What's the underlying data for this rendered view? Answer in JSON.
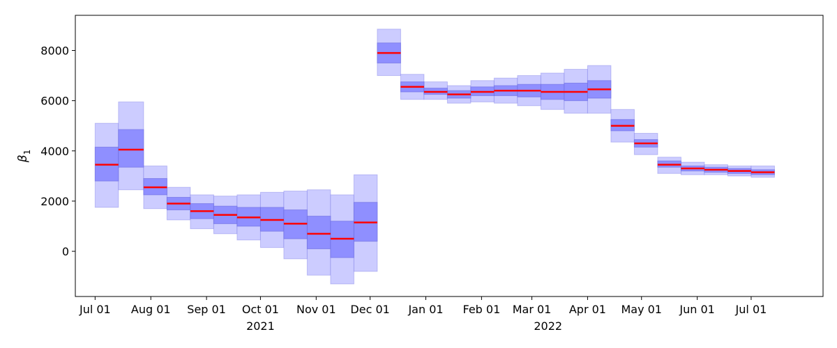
{
  "chart_data": {
    "type": "box",
    "xlabel": "",
    "ylabel": "β",
    "ylabel_sub": "1",
    "ylim": [
      -1800,
      9400
    ],
    "xlim": [
      "2021-06-20",
      "2022-08-10"
    ],
    "yticks": [
      0,
      2000,
      4000,
      6000,
      8000
    ],
    "ytick_labels": [
      "0",
      "2000",
      "4000",
      "6000",
      "8000"
    ],
    "xticks": [
      {
        "date": "2021-07-01",
        "label": "Jul 01"
      },
      {
        "date": "2021-08-01",
        "label": "Aug 01"
      },
      {
        "date": "2021-09-01",
        "label": "Sep 01"
      },
      {
        "date": "2021-10-01",
        "label": "Oct 01"
      },
      {
        "date": "2021-11-01",
        "label": "Nov 01"
      },
      {
        "date": "2021-12-01",
        "label": "Dec 01"
      },
      {
        "date": "2022-01-01",
        "label": "Jan 01"
      },
      {
        "date": "2022-02-01",
        "label": "Feb 01"
      },
      {
        "date": "2022-03-01",
        "label": "Mar 01"
      },
      {
        "date": "2022-04-01",
        "label": "Apr 01"
      },
      {
        "date": "2022-05-01",
        "label": "May 01"
      },
      {
        "date": "2022-06-01",
        "label": "Jun 01"
      },
      {
        "date": "2022-07-01",
        "label": "Jul 01"
      }
    ],
    "year_labels": [
      {
        "date": "2021-10-01",
        "label": "2021"
      },
      {
        "date": "2022-03-10",
        "label": "2022"
      }
    ],
    "colors": {
      "outer_band": "#ccccff",
      "inner_band": "#8f8fff",
      "band_edge": "#6a6ae0",
      "median": "#ff0000"
    },
    "grid": false,
    "segments": [
      {
        "start": "2021-07-01",
        "end": "2021-07-14",
        "lower_outer": 1750,
        "lower_inner": 2800,
        "median": 3450,
        "upper_inner": 4150,
        "upper_outer": 5100
      },
      {
        "start": "2021-07-14",
        "end": "2021-07-28",
        "lower_outer": 2450,
        "lower_inner": 3350,
        "median": 4050,
        "upper_inner": 4850,
        "upper_outer": 5950
      },
      {
        "start": "2021-07-28",
        "end": "2021-08-10",
        "lower_outer": 1700,
        "lower_inner": 2250,
        "median": 2550,
        "upper_inner": 2900,
        "upper_outer": 3400
      },
      {
        "start": "2021-08-10",
        "end": "2021-08-23",
        "lower_outer": 1250,
        "lower_inner": 1650,
        "median": 1900,
        "upper_inner": 2150,
        "upper_outer": 2550
      },
      {
        "start": "2021-08-23",
        "end": "2021-09-05",
        "lower_outer": 900,
        "lower_inner": 1300,
        "median": 1600,
        "upper_inner": 1900,
        "upper_outer": 2250
      },
      {
        "start": "2021-09-05",
        "end": "2021-09-18",
        "lower_outer": 700,
        "lower_inner": 1100,
        "median": 1450,
        "upper_inner": 1800,
        "upper_outer": 2200
      },
      {
        "start": "2021-09-18",
        "end": "2021-10-01",
        "lower_outer": 450,
        "lower_inner": 1000,
        "median": 1350,
        "upper_inner": 1750,
        "upper_outer": 2250
      },
      {
        "start": "2021-10-01",
        "end": "2021-10-14",
        "lower_outer": 150,
        "lower_inner": 800,
        "median": 1250,
        "upper_inner": 1750,
        "upper_outer": 2350
      },
      {
        "start": "2021-10-14",
        "end": "2021-10-27",
        "lower_outer": -300,
        "lower_inner": 500,
        "median": 1100,
        "upper_inner": 1650,
        "upper_outer": 2400
      },
      {
        "start": "2021-10-27",
        "end": "2021-11-09",
        "lower_outer": -950,
        "lower_inner": 100,
        "median": 700,
        "upper_inner": 1400,
        "upper_outer": 2450
      },
      {
        "start": "2021-11-09",
        "end": "2021-11-22",
        "lower_outer": -1300,
        "lower_inner": -250,
        "median": 500,
        "upper_inner": 1200,
        "upper_outer": 2250
      },
      {
        "start": "2021-11-22",
        "end": "2021-12-05",
        "lower_outer": -800,
        "lower_inner": 400,
        "median": 1150,
        "upper_inner": 1950,
        "upper_outer": 3050
      },
      {
        "start": "2021-12-05",
        "end": "2021-12-18",
        "lower_outer": 7000,
        "lower_inner": 7500,
        "median": 7900,
        "upper_inner": 8300,
        "upper_outer": 8850
      },
      {
        "start": "2021-12-18",
        "end": "2021-12-31",
        "lower_outer": 6050,
        "lower_inner": 6350,
        "median": 6550,
        "upper_inner": 6750,
        "upper_outer": 7050
      },
      {
        "start": "2021-12-31",
        "end": "2022-01-13",
        "lower_outer": 6050,
        "lower_inner": 6250,
        "median": 6350,
        "upper_inner": 6500,
        "upper_outer": 6750
      },
      {
        "start": "2022-01-13",
        "end": "2022-01-26",
        "lower_outer": 5900,
        "lower_inner": 6100,
        "median": 6250,
        "upper_inner": 6400,
        "upper_outer": 6600
      },
      {
        "start": "2022-01-26",
        "end": "2022-02-08",
        "lower_outer": 5950,
        "lower_inner": 6200,
        "median": 6350,
        "upper_inner": 6550,
        "upper_outer": 6800
      },
      {
        "start": "2022-02-08",
        "end": "2022-02-21",
        "lower_outer": 5900,
        "lower_inner": 6200,
        "median": 6400,
        "upper_inner": 6600,
        "upper_outer": 6900
      },
      {
        "start": "2022-02-21",
        "end": "2022-03-06",
        "lower_outer": 5800,
        "lower_inner": 6150,
        "median": 6400,
        "upper_inner": 6650,
        "upper_outer": 7000
      },
      {
        "start": "2022-03-06",
        "end": "2022-03-19",
        "lower_outer": 5650,
        "lower_inner": 6050,
        "median": 6350,
        "upper_inner": 6650,
        "upper_outer": 7100
      },
      {
        "start": "2022-03-19",
        "end": "2022-04-01",
        "lower_outer": 5500,
        "lower_inner": 6000,
        "median": 6350,
        "upper_inner": 6700,
        "upper_outer": 7250
      },
      {
        "start": "2022-04-01",
        "end": "2022-04-14",
        "lower_outer": 5500,
        "lower_inner": 6100,
        "median": 6450,
        "upper_inner": 6800,
        "upper_outer": 7400
      },
      {
        "start": "2022-04-14",
        "end": "2022-04-27",
        "lower_outer": 4350,
        "lower_inner": 4800,
        "median": 5000,
        "upper_inner": 5250,
        "upper_outer": 5650
      },
      {
        "start": "2022-04-27",
        "end": "2022-05-10",
        "lower_outer": 3850,
        "lower_inner": 4150,
        "median": 4300,
        "upper_inner": 4450,
        "upper_outer": 4700
      },
      {
        "start": "2022-05-10",
        "end": "2022-05-23",
        "lower_outer": 3100,
        "lower_inner": 3350,
        "median": 3450,
        "upper_inner": 3600,
        "upper_outer": 3750
      },
      {
        "start": "2022-05-23",
        "end": "2022-06-05",
        "lower_outer": 3050,
        "lower_inner": 3200,
        "median": 3300,
        "upper_inner": 3400,
        "upper_outer": 3550
      },
      {
        "start": "2022-06-05",
        "end": "2022-06-18",
        "lower_outer": 3050,
        "lower_inner": 3150,
        "median": 3250,
        "upper_inner": 3350,
        "upper_outer": 3450
      },
      {
        "start": "2022-06-18",
        "end": "2022-07-01",
        "lower_outer": 3000,
        "lower_inner": 3100,
        "median": 3200,
        "upper_inner": 3300,
        "upper_outer": 3400
      },
      {
        "start": "2022-07-01",
        "end": "2022-07-14",
        "lower_outer": 2950,
        "lower_inner": 3050,
        "median": 3150,
        "upper_inner": 3250,
        "upper_outer": 3400
      }
    ]
  }
}
